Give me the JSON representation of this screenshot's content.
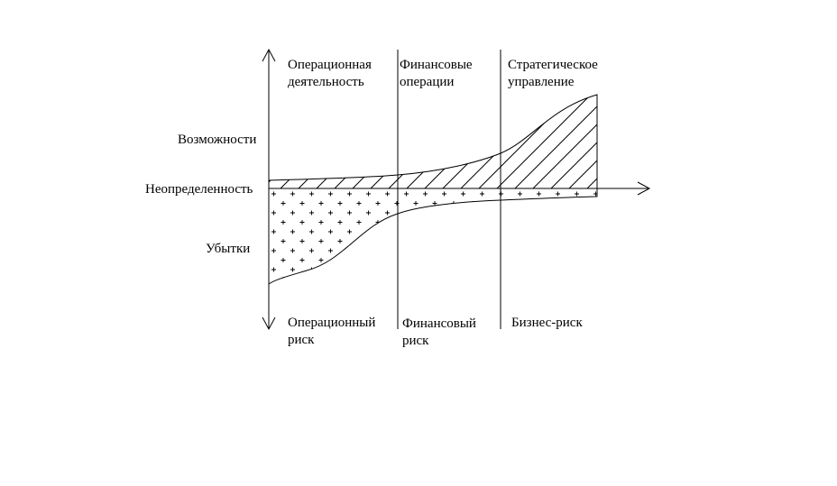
{
  "top_labels": [
    [
      "Операционная",
      "деятельность"
    ],
    [
      "Финансовые",
      "операции"
    ],
    [
      "Стратегическое",
      "управление"
    ]
  ],
  "left_labels": [
    "Возможности",
    "Неопределенность",
    "Убытки"
  ],
  "bottom_labels": [
    [
      "Операционный",
      "риск"
    ],
    [
      "Финансовый",
      "риск"
    ],
    [
      "Бизнес-риск"
    ]
  ]
}
